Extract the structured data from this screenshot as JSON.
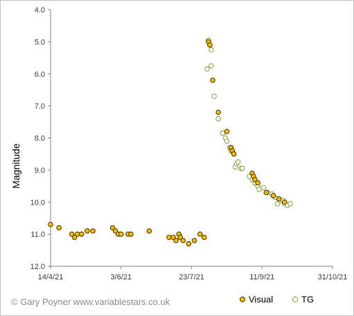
{
  "chart_data": {
    "type": "scatter",
    "title": "",
    "xlabel": "",
    "ylabel": "Magnitude",
    "x_ticks": [
      "14/4/21",
      "3/6/21",
      "23/7/21",
      "11/9/21",
      "31/10/21"
    ],
    "x_range": [
      "2021-04-14",
      "2021-10-31"
    ],
    "y_ticks": [
      "4.0",
      "5.0",
      "6.0",
      "7.0",
      "8.0",
      "9.0",
      "10.0",
      "11.0",
      "12.0"
    ],
    "ylim": [
      4.0,
      12.0
    ],
    "y_inverted": true,
    "grid": false,
    "legend_position": "bottom-right",
    "credit": "© Gary Poyner www.variablestars.co.uk",
    "series": [
      {
        "name": "Visual",
        "marker": "filled-circle",
        "color": "#f2b800",
        "edge": "#3a2c00",
        "points": [
          [
            "2021-04-14",
            10.7
          ],
          [
            "2021-04-20",
            10.8
          ],
          [
            "2021-04-29",
            11.0
          ],
          [
            "2021-05-01",
            11.1
          ],
          [
            "2021-05-03",
            11.0
          ],
          [
            "2021-05-06",
            11.0
          ],
          [
            "2021-05-10",
            10.9
          ],
          [
            "2021-05-14",
            10.9
          ],
          [
            "2021-05-28",
            10.8
          ],
          [
            "2021-05-30",
            10.9
          ],
          [
            "2021-06-01",
            11.0
          ],
          [
            "2021-06-03",
            11.0
          ],
          [
            "2021-06-08",
            11.0
          ],
          [
            "2021-06-10",
            11.0
          ],
          [
            "2021-06-23",
            10.9
          ],
          [
            "2021-07-07",
            11.1
          ],
          [
            "2021-07-10",
            11.1
          ],
          [
            "2021-07-12",
            11.2
          ],
          [
            "2021-07-14",
            11.0
          ],
          [
            "2021-07-15",
            11.1
          ],
          [
            "2021-07-17",
            11.2
          ],
          [
            "2021-07-21",
            11.3
          ],
          [
            "2021-07-25",
            11.2
          ],
          [
            "2021-07-29",
            11.0
          ],
          [
            "2021-08-01",
            11.1
          ],
          [
            "2021-08-04",
            5.0
          ],
          [
            "2021-08-05",
            5.1
          ],
          [
            "2021-08-07",
            6.2
          ],
          [
            "2021-08-11",
            7.2
          ],
          [
            "2021-08-17",
            7.8
          ],
          [
            "2021-08-20",
            8.3
          ],
          [
            "2021-08-21",
            8.4
          ],
          [
            "2021-08-22",
            8.5
          ],
          [
            "2021-09-04",
            9.1
          ],
          [
            "2021-09-05",
            9.2
          ],
          [
            "2021-09-06",
            9.3
          ],
          [
            "2021-09-08",
            9.4
          ],
          [
            "2021-09-14",
            9.7
          ],
          [
            "2021-09-19",
            9.8
          ],
          [
            "2021-09-23",
            9.9
          ],
          [
            "2021-09-27",
            10.0
          ]
        ]
      },
      {
        "name": "TG",
        "marker": "open-circle",
        "color": "#ffffff",
        "edge": "#7aa83a",
        "points": [
          [
            "2021-08-04",
            4.95
          ],
          [
            "2021-08-05",
            5.1
          ],
          [
            "2021-08-06",
            5.25
          ],
          [
            "2021-08-03",
            5.85
          ],
          [
            "2021-08-06",
            5.75
          ],
          [
            "2021-08-08",
            6.7
          ],
          [
            "2021-08-11",
            7.4
          ],
          [
            "2021-08-14",
            7.85
          ],
          [
            "2021-08-16",
            8.0
          ],
          [
            "2021-08-17",
            8.1
          ],
          [
            "2021-08-19",
            8.3
          ],
          [
            "2021-08-20",
            8.4
          ],
          [
            "2021-08-22",
            8.5
          ],
          [
            "2021-08-23",
            8.9
          ],
          [
            "2021-08-24",
            8.8
          ],
          [
            "2021-08-25",
            8.75
          ],
          [
            "2021-08-27",
            8.95
          ],
          [
            "2021-08-28",
            8.95
          ],
          [
            "2021-09-02",
            9.2
          ],
          [
            "2021-09-04",
            9.3
          ],
          [
            "2021-09-06",
            9.4
          ],
          [
            "2021-09-08",
            9.5
          ],
          [
            "2021-09-09",
            9.6
          ],
          [
            "2021-09-12",
            9.55
          ],
          [
            "2021-09-15",
            9.7
          ],
          [
            "2021-09-18",
            9.75
          ],
          [
            "2021-09-20",
            9.85
          ],
          [
            "2021-09-22",
            10.05
          ],
          [
            "2021-09-24",
            9.95
          ],
          [
            "2021-09-26",
            9.95
          ],
          [
            "2021-09-27",
            10.05
          ],
          [
            "2021-09-29",
            10.1
          ],
          [
            "2021-10-01",
            10.05
          ]
        ]
      }
    ]
  }
}
